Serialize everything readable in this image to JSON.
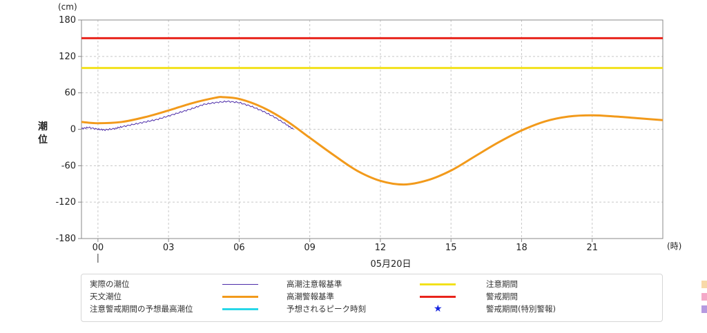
{
  "chart_data": {
    "type": "line",
    "unit": "(cm)",
    "ylabel": "潮位",
    "ylim": [
      -180,
      180
    ],
    "yticks": [
      180,
      120,
      60,
      0,
      -60,
      -120,
      -180
    ],
    "xlim": [
      -0.7,
      24
    ],
    "xticks": [
      0,
      3,
      6,
      9,
      12,
      15,
      18,
      21
    ],
    "xtick_labels": [
      "00",
      "03",
      "06",
      "09",
      "12",
      "15",
      "18",
      "21"
    ],
    "xunit": "(時)",
    "date_label": "05月20日",
    "grid": true,
    "thresholds": [
      {
        "name": "高潮警報基準",
        "value": 150,
        "color": "#e8231b"
      },
      {
        "name": "高潮注意報基準",
        "value": 101,
        "color": "#f2e11a"
      }
    ],
    "series": [
      {
        "name": "天文潮位",
        "color": "#f29a1b",
        "x": [
          -0.7,
          0,
          1,
          2,
          3,
          4,
          5,
          5.3,
          6,
          7,
          8,
          9,
          10,
          11,
          12,
          13,
          14,
          15,
          16,
          17,
          18,
          19,
          20,
          21,
          22,
          23,
          24
        ],
        "y": [
          12,
          10,
          12,
          20,
          31,
          43,
          52,
          53,
          50,
          36,
          14,
          -14,
          -42,
          -68,
          -85,
          -91,
          -84,
          -68,
          -45,
          -22,
          -2,
          13,
          21,
          23,
          21,
          18,
          15
        ]
      },
      {
        "name": "実際の潮位",
        "color": "#4b2aa8",
        "x": [
          -0.7,
          -0.4,
          0,
          0.3,
          0.7,
          1,
          1.5,
          2,
          2.5,
          3,
          3.5,
          4,
          4.5,
          5,
          5.5,
          6,
          6.5,
          7,
          7.5,
          8,
          8.3
        ],
        "y": [
          1,
          3,
          0,
          -1,
          1,
          4,
          8,
          12,
          16,
          22,
          28,
          34,
          41,
          44,
          46,
          44,
          38,
          30,
          20,
          8,
          0
        ]
      }
    ]
  },
  "legend": {
    "items": [
      {
        "label": "実際の潮位",
        "kind": "thin",
        "color": "#4b2aa8"
      },
      {
        "label": "天文潮位",
        "kind": "line",
        "color": "#f29a1b"
      },
      {
        "label": "注意警戒期間の予想最高潮位",
        "kind": "line",
        "color": "#27d7e8"
      },
      {
        "label": "高潮注意報基準",
        "kind": "line",
        "color": "#f2e11a"
      },
      {
        "label": "高潮警報基準",
        "kind": "line",
        "color": "#e8231b"
      },
      {
        "label": "予想されるピーク時刻",
        "kind": "star",
        "color": "#1524e0",
        "icon": "star-icon"
      },
      {
        "label": "注意期間",
        "kind": "swatch",
        "color": "#f8d9a8"
      },
      {
        "label": "警戒期間",
        "kind": "swatch",
        "color": "#f4a9c8"
      },
      {
        "label": "警戒期間(特別警報)",
        "kind": "swatch",
        "color": "#b59ae0"
      }
    ]
  }
}
